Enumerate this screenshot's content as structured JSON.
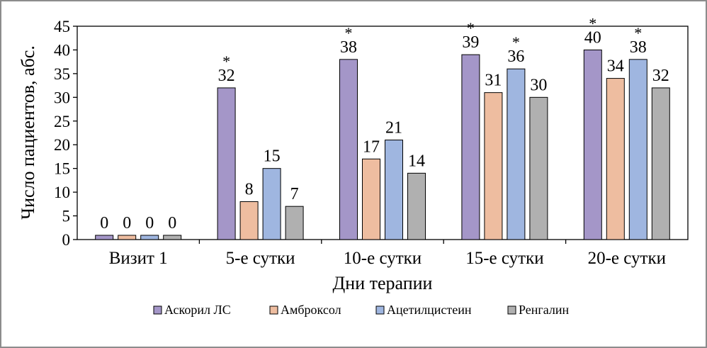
{
  "chart_data": {
    "type": "bar",
    "title": "",
    "xlabel": "Дни терапии",
    "ylabel": "Число пациентов, абс.",
    "ylim": [
      0,
      45
    ],
    "yticks": [
      "0",
      "5",
      "10",
      "15",
      "20",
      "25",
      "30",
      "35",
      "40",
      "45"
    ],
    "categories": [
      "Визит 1",
      "5-е сутки",
      "10-е сутки",
      "15-е сутки",
      "20-е сутки"
    ],
    "legend_position": "bottom",
    "grid": false,
    "series": [
      {
        "name": "Аскорил ЛС",
        "color": "#a496c8",
        "values": [
          0,
          32,
          38,
          39,
          40
        ],
        "labels": [
          "0",
          "32",
          "38",
          "39",
          "40"
        ],
        "stars": [
          "",
          "*",
          "*",
          "*",
          "*"
        ]
      },
      {
        "name": "Амброксол",
        "color": "#eebda0",
        "values": [
          0,
          8,
          17,
          31,
          34
        ],
        "labels": [
          "0",
          "8",
          "17",
          "31",
          "34"
        ],
        "stars": [
          "",
          "",
          "",
          "",
          ""
        ]
      },
      {
        "name": "Ацетилцистеин",
        "color": "#9fb6e0",
        "values": [
          0,
          15,
          21,
          36,
          38
        ],
        "labels": [
          "0",
          "15",
          "21",
          "36",
          "38"
        ],
        "stars": [
          "",
          "",
          "",
          "*",
          "*"
        ]
      },
      {
        "name": "Ренгалин",
        "color": "#b0b0b0",
        "values": [
          0,
          7,
          14,
          30,
          32
        ],
        "labels": [
          "0",
          "7",
          "14",
          "30",
          "32"
        ],
        "stars": [
          "",
          "",
          "",
          "",
          ""
        ]
      }
    ]
  }
}
